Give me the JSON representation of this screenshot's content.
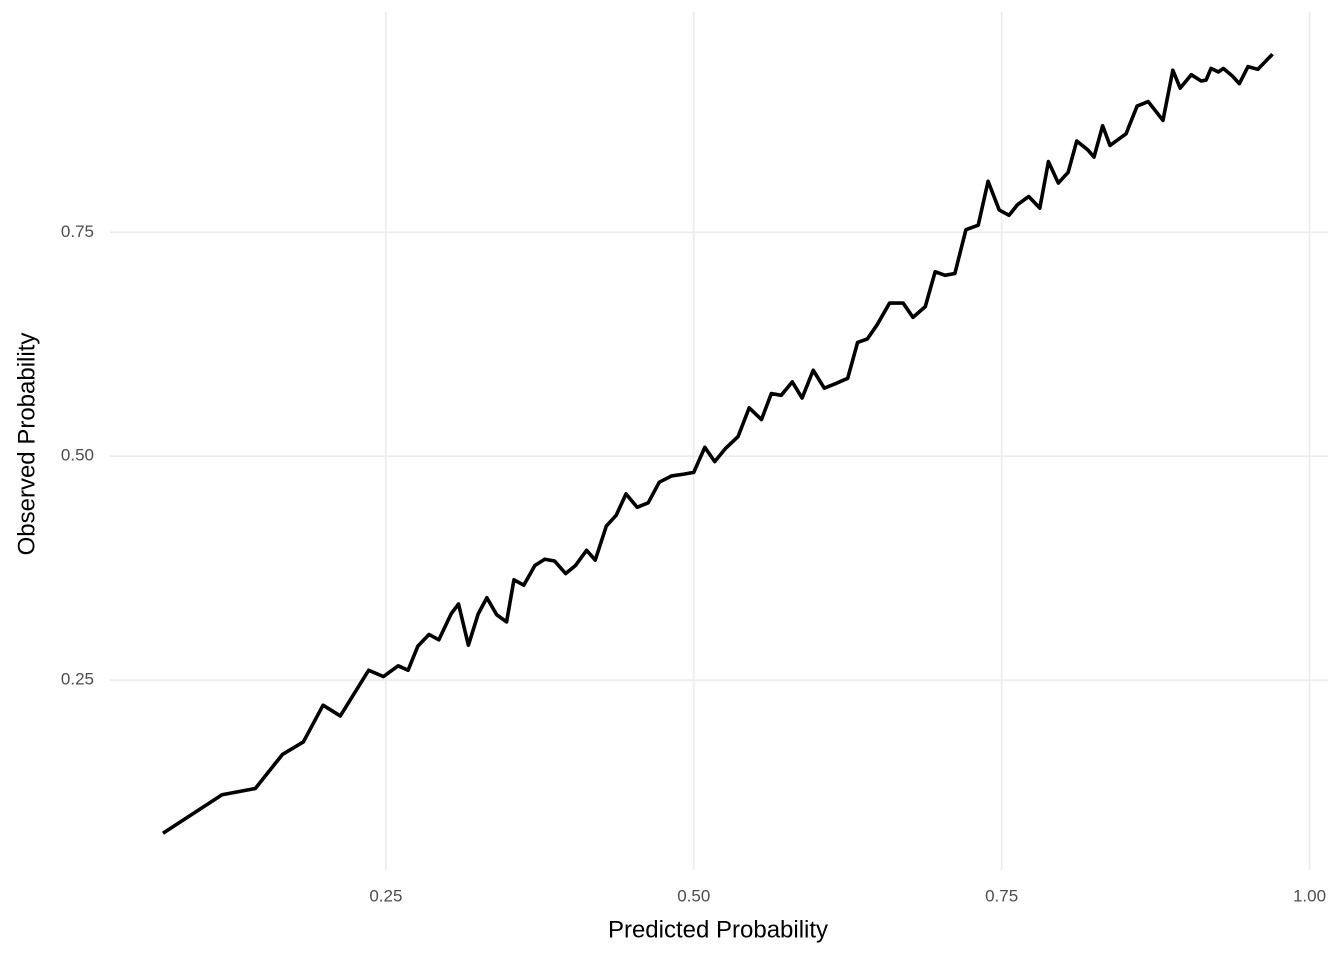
{
  "chart_data": {
    "type": "line",
    "x_label": "Predicted Probability",
    "y_label": "Observed Probability",
    "xlim": [
      0.026,
      1.015
    ],
    "ylim": [
      0.038,
      0.996
    ],
    "xticks": [
      0.25,
      {
        "value": 0.5,
        "label": "0.50"
      },
      0.75,
      {
        "value": 1.0,
        "label": "1.00"
      }
    ],
    "yticks": [
      0.25,
      {
        "value": 0.5,
        "label": "0.50"
      },
      0.75
    ],
    "grid": true,
    "series": [
      {
        "color": "#000000",
        "x": [
          0.069,
          0.117,
          0.144,
          0.166,
          0.183,
          0.199,
          0.213,
          0.236,
          0.248,
          0.26,
          0.268,
          0.276,
          0.285,
          0.293,
          0.303,
          0.309,
          0.317,
          0.325,
          0.332,
          0.34,
          0.348,
          0.354,
          0.362,
          0.371,
          0.379,
          0.387,
          0.396,
          0.404,
          0.413,
          0.42,
          0.429,
          0.437,
          0.445,
          0.454,
          0.463,
          0.472,
          0.482,
          0.492,
          0.5,
          0.509,
          0.517,
          0.526,
          0.536,
          0.545,
          0.555,
          0.563,
          0.571,
          0.58,
          0.588,
          0.597,
          0.606,
          0.615,
          0.625,
          0.633,
          0.641,
          0.649,
          0.659,
          0.67,
          0.678,
          0.688,
          0.696,
          0.704,
          0.712,
          0.721,
          0.731,
          0.739,
          0.748,
          0.756,
          0.763,
          0.772,
          0.781,
          0.788,
          0.796,
          0.804,
          0.811,
          0.82,
          0.825,
          0.832,
          0.838,
          0.851,
          0.86,
          0.869,
          0.881,
          0.889,
          0.895,
          0.904,
          0.912,
          0.916,
          0.92,
          0.926,
          0.93,
          0.937,
          0.943,
          0.95,
          0.958,
          0.97
        ],
        "values": [
          0.079,
          0.122,
          0.129,
          0.167,
          0.181,
          0.222,
          0.21,
          0.261,
          0.254,
          0.266,
          0.261,
          0.288,
          0.301,
          0.295,
          0.324,
          0.335,
          0.289,
          0.324,
          0.342,
          0.323,
          0.315,
          0.362,
          0.356,
          0.378,
          0.385,
          0.383,
          0.369,
          0.378,
          0.395,
          0.384,
          0.422,
          0.434,
          0.458,
          0.443,
          0.448,
          0.471,
          0.478,
          0.48,
          0.482,
          0.51,
          0.494,
          0.509,
          0.522,
          0.554,
          0.541,
          0.57,
          0.568,
          0.583,
          0.565,
          0.596,
          0.576,
          0.581,
          0.587,
          0.627,
          0.631,
          0.647,
          0.671,
          0.671,
          0.655,
          0.667,
          0.706,
          0.702,
          0.704,
          0.753,
          0.758,
          0.807,
          0.775,
          0.769,
          0.781,
          0.79,
          0.777,
          0.829,
          0.805,
          0.817,
          0.852,
          0.842,
          0.834,
          0.869,
          0.847,
          0.86,
          0.891,
          0.896,
          0.875,
          0.931,
          0.911,
          0.926,
          0.919,
          0.92,
          0.933,
          0.929,
          0.933,
          0.925,
          0.916,
          0.935,
          0.932,
          0.949
        ]
      }
    ]
  }
}
